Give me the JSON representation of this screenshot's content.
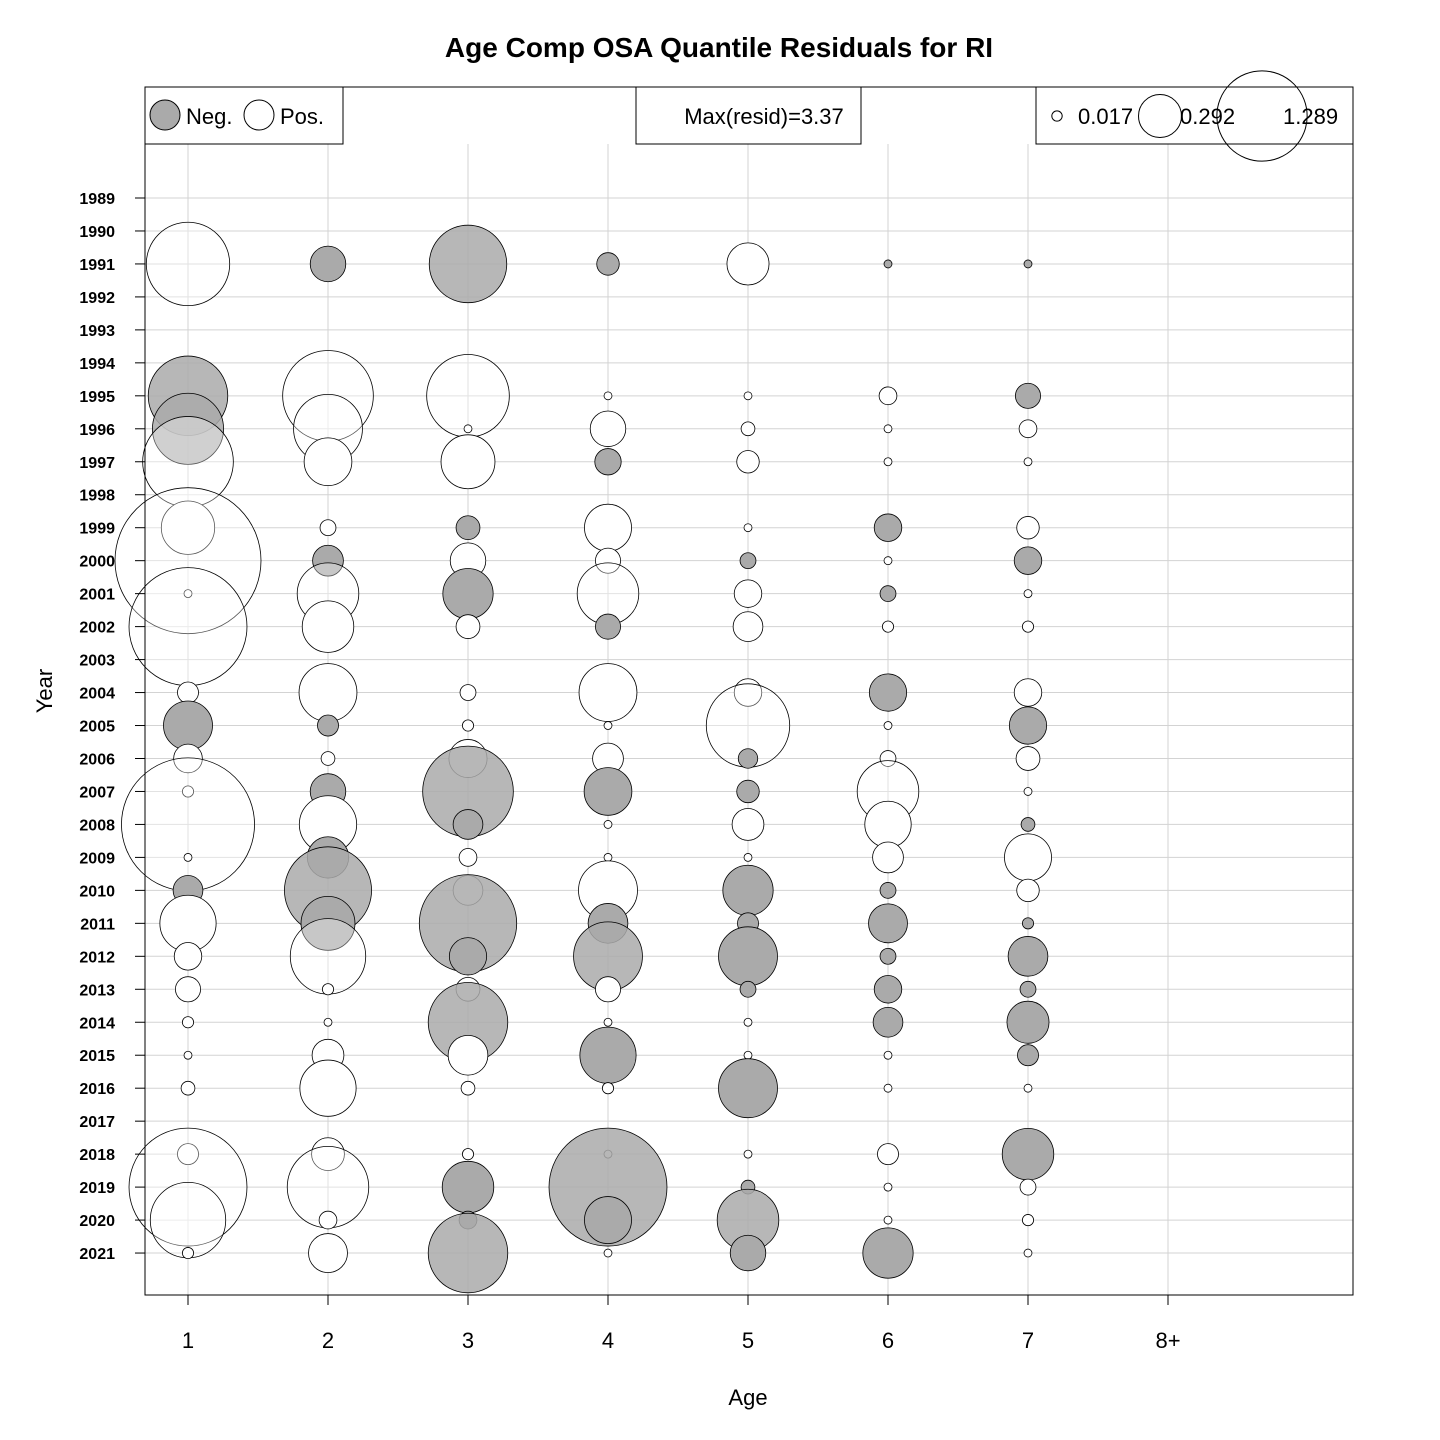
{
  "chart_data": {
    "type": "bubble",
    "title": "Age Comp OSA Quantile Residuals for RI",
    "xlabel": "Age",
    "ylabel": "Year",
    "ages": [
      "1",
      "2",
      "3",
      "4",
      "5",
      "6",
      "7",
      "8+"
    ],
    "years": [
      1989,
      1990,
      1991,
      1992,
      1993,
      1994,
      1995,
      1996,
      1997,
      1998,
      1999,
      2000,
      2001,
      2002,
      2003,
      2004,
      2005,
      2006,
      2007,
      2008,
      2009,
      2010,
      2011,
      2012,
      2013,
      2014,
      2015,
      2016,
      2017,
      2018,
      2019,
      2020,
      2021
    ],
    "colors": {
      "negative": "#aaaaaa",
      "positive": "#ffffff"
    },
    "grid": true,
    "max_resid": 3.37,
    "legend": {
      "sign": {
        "neg_label": "Neg.",
        "pos_label": "Pos.",
        "placement": "top-left"
      },
      "max_label": "Max(resid)=3.37",
      "size_values": [
        "0.017",
        "0.292",
        "1.289"
      ],
      "size_placement": "top-right"
    },
    "residuals": [
      [
        1991,
        1,
        1.1
      ],
      [
        1991,
        2,
        -0.2
      ],
      [
        1991,
        3,
        -0.95
      ],
      [
        1991,
        4,
        -0.08
      ],
      [
        1991,
        5,
        0.28
      ],
      [
        1991,
        6,
        -0.01
      ],
      [
        1991,
        7,
        -0.01
      ],
      [
        1995,
        1,
        -1.0
      ],
      [
        1995,
        2,
        1.3
      ],
      [
        1995,
        3,
        1.08
      ],
      [
        1995,
        4,
        0.01
      ],
      [
        1995,
        5,
        0.01
      ],
      [
        1995,
        6,
        0.05
      ],
      [
        1995,
        7,
        -0.1
      ],
      [
        1996,
        1,
        -0.8
      ],
      [
        1996,
        2,
        0.75
      ],
      [
        1996,
        3,
        0.01
      ],
      [
        1996,
        4,
        0.2
      ],
      [
        1996,
        5,
        0.03
      ],
      [
        1996,
        6,
        0.01
      ],
      [
        1996,
        7,
        0.05
      ],
      [
        1997,
        1,
        1.3
      ],
      [
        1997,
        2,
        0.36
      ],
      [
        1997,
        3,
        0.46
      ],
      [
        1997,
        4,
        -0.11
      ],
      [
        1997,
        5,
        0.08
      ],
      [
        1997,
        6,
        0.01
      ],
      [
        1997,
        7,
        0.01
      ],
      [
        1999,
        1,
        0.45
      ],
      [
        1999,
        2,
        0.04
      ],
      [
        1999,
        3,
        -0.09
      ],
      [
        1999,
        4,
        0.35
      ],
      [
        1999,
        5,
        0.01
      ],
      [
        1999,
        6,
        -0.12
      ],
      [
        1999,
        7,
        0.08
      ],
      [
        2000,
        1,
        3.37
      ],
      [
        2000,
        2,
        -0.15
      ],
      [
        2000,
        3,
        0.2
      ],
      [
        2000,
        4,
        0.1
      ],
      [
        2000,
        5,
        -0.04
      ],
      [
        2000,
        6,
        0.01
      ],
      [
        2000,
        7,
        -0.12
      ],
      [
        2001,
        1,
        0.01
      ],
      [
        2001,
        2,
        0.6
      ],
      [
        2001,
        3,
        -0.4
      ],
      [
        2001,
        4,
        0.6
      ],
      [
        2001,
        5,
        0.12
      ],
      [
        2001,
        6,
        -0.04
      ],
      [
        2001,
        7,
        0.01
      ],
      [
        2002,
        1,
        2.2
      ],
      [
        2002,
        2,
        0.42
      ],
      [
        2002,
        3,
        0.09
      ],
      [
        2002,
        4,
        -0.1
      ],
      [
        2002,
        5,
        0.14
      ],
      [
        2002,
        6,
        0.02
      ],
      [
        2002,
        7,
        0.02
      ],
      [
        2004,
        1,
        0.07
      ],
      [
        2004,
        2,
        0.53
      ],
      [
        2004,
        3,
        0.04
      ],
      [
        2004,
        4,
        0.53
      ],
      [
        2004,
        5,
        0.12
      ],
      [
        2004,
        6,
        -0.22
      ],
      [
        2004,
        7,
        0.12
      ],
      [
        2005,
        1,
        -0.38
      ],
      [
        2005,
        2,
        -0.07
      ],
      [
        2005,
        3,
        0.02
      ],
      [
        2005,
        4,
        0.01
      ],
      [
        2005,
        5,
        1.1
      ],
      [
        2005,
        6,
        0.01
      ],
      [
        2005,
        7,
        -0.22
      ],
      [
        2006,
        1,
        0.13
      ],
      [
        2006,
        2,
        0.03
      ],
      [
        2006,
        3,
        0.23
      ],
      [
        2006,
        4,
        0.15
      ],
      [
        2006,
        5,
        -0.06
      ],
      [
        2006,
        6,
        0.04
      ],
      [
        2006,
        7,
        0.09
      ],
      [
        2007,
        1,
        0.02
      ],
      [
        2007,
        2,
        -0.2
      ],
      [
        2007,
        3,
        -1.3
      ],
      [
        2007,
        4,
        -0.36
      ],
      [
        2007,
        5,
        -0.08
      ],
      [
        2007,
        6,
        0.6
      ],
      [
        2007,
        7,
        0.01
      ],
      [
        2008,
        1,
        2.8
      ],
      [
        2008,
        2,
        0.52
      ],
      [
        2008,
        3,
        -0.14
      ],
      [
        2008,
        4,
        0.01
      ],
      [
        2008,
        5,
        0.16
      ],
      [
        2008,
        6,
        0.34
      ],
      [
        2008,
        7,
        -0.03
      ],
      [
        2009,
        1,
        0.01
      ],
      [
        2009,
        2,
        -0.27
      ],
      [
        2009,
        3,
        0.05
      ],
      [
        2009,
        4,
        0.01
      ],
      [
        2009,
        5,
        0.01
      ],
      [
        2009,
        6,
        0.15
      ],
      [
        2009,
        7,
        0.35
      ],
      [
        2010,
        1,
        -0.14
      ],
      [
        2010,
        2,
        -1.2
      ],
      [
        2010,
        3,
        0.14
      ],
      [
        2010,
        4,
        0.55
      ],
      [
        2010,
        5,
        -0.4
      ],
      [
        2010,
        6,
        -0.04
      ],
      [
        2010,
        7,
        0.08
      ],
      [
        2011,
        1,
        0.5
      ],
      [
        2011,
        2,
        -0.46
      ],
      [
        2011,
        3,
        -1.5
      ],
      [
        2011,
        4,
        -0.25
      ],
      [
        2011,
        5,
        -0.07
      ],
      [
        2011,
        6,
        -0.24
      ],
      [
        2011,
        7,
        -0.02
      ],
      [
        2012,
        1,
        0.12
      ],
      [
        2012,
        2,
        0.9
      ],
      [
        2012,
        3,
        -0.22
      ],
      [
        2012,
        4,
        -0.75
      ],
      [
        2012,
        5,
        -0.55
      ],
      [
        2012,
        6,
        -0.04
      ],
      [
        2012,
        7,
        -0.25
      ],
      [
        2013,
        1,
        0.1
      ],
      [
        2013,
        2,
        0.02
      ],
      [
        2013,
        3,
        0.09
      ],
      [
        2013,
        4,
        0.1
      ],
      [
        2013,
        5,
        -0.04
      ],
      [
        2013,
        6,
        -0.12
      ],
      [
        2013,
        7,
        -0.04
      ],
      [
        2014,
        1,
        0.02
      ],
      [
        2014,
        2,
        0.01
      ],
      [
        2014,
        3,
        -1.0
      ],
      [
        2014,
        4,
        0.01
      ],
      [
        2014,
        5,
        0.01
      ],
      [
        2014,
        6,
        -0.14
      ],
      [
        2014,
        7,
        -0.28
      ],
      [
        2015,
        1,
        0.01
      ],
      [
        2015,
        2,
        0.16
      ],
      [
        2015,
        3,
        0.25
      ],
      [
        2015,
        4,
        -0.5
      ],
      [
        2015,
        5,
        0.01
      ],
      [
        2015,
        6,
        0.01
      ],
      [
        2015,
        7,
        -0.07
      ],
      [
        2016,
        1,
        0.03
      ],
      [
        2016,
        2,
        0.5
      ],
      [
        2016,
        3,
        0.03
      ],
      [
        2016,
        4,
        0.02
      ],
      [
        2016,
        5,
        -0.55
      ],
      [
        2016,
        6,
        0.01
      ],
      [
        2016,
        7,
        0.01
      ],
      [
        2018,
        1,
        0.07
      ],
      [
        2018,
        2,
        0.17
      ],
      [
        2018,
        3,
        0.02
      ],
      [
        2018,
        4,
        0.01
      ],
      [
        2018,
        5,
        0.01
      ],
      [
        2018,
        6,
        0.07
      ],
      [
        2018,
        7,
        -0.42
      ],
      [
        2019,
        1,
        2.2
      ],
      [
        2019,
        2,
        1.05
      ],
      [
        2019,
        3,
        -0.42
      ],
      [
        2019,
        4,
        -2.2
      ],
      [
        2019,
        5,
        -0.03
      ],
      [
        2019,
        6,
        0.01
      ],
      [
        2019,
        7,
        0.04
      ],
      [
        2020,
        1,
        0.9
      ],
      [
        2020,
        2,
        0.05
      ],
      [
        2020,
        3,
        -0.05
      ],
      [
        2020,
        4,
        -0.35
      ],
      [
        2020,
        5,
        -0.6
      ],
      [
        2020,
        6,
        0.01
      ],
      [
        2020,
        7,
        0.02
      ],
      [
        2021,
        1,
        0.02
      ],
      [
        2021,
        2,
        0.24
      ],
      [
        2021,
        3,
        -1.0
      ],
      [
        2021,
        4,
        0.01
      ],
      [
        2021,
        5,
        -0.2
      ],
      [
        2021,
        6,
        -0.4
      ],
      [
        2021,
        7,
        0.01
      ]
    ]
  }
}
